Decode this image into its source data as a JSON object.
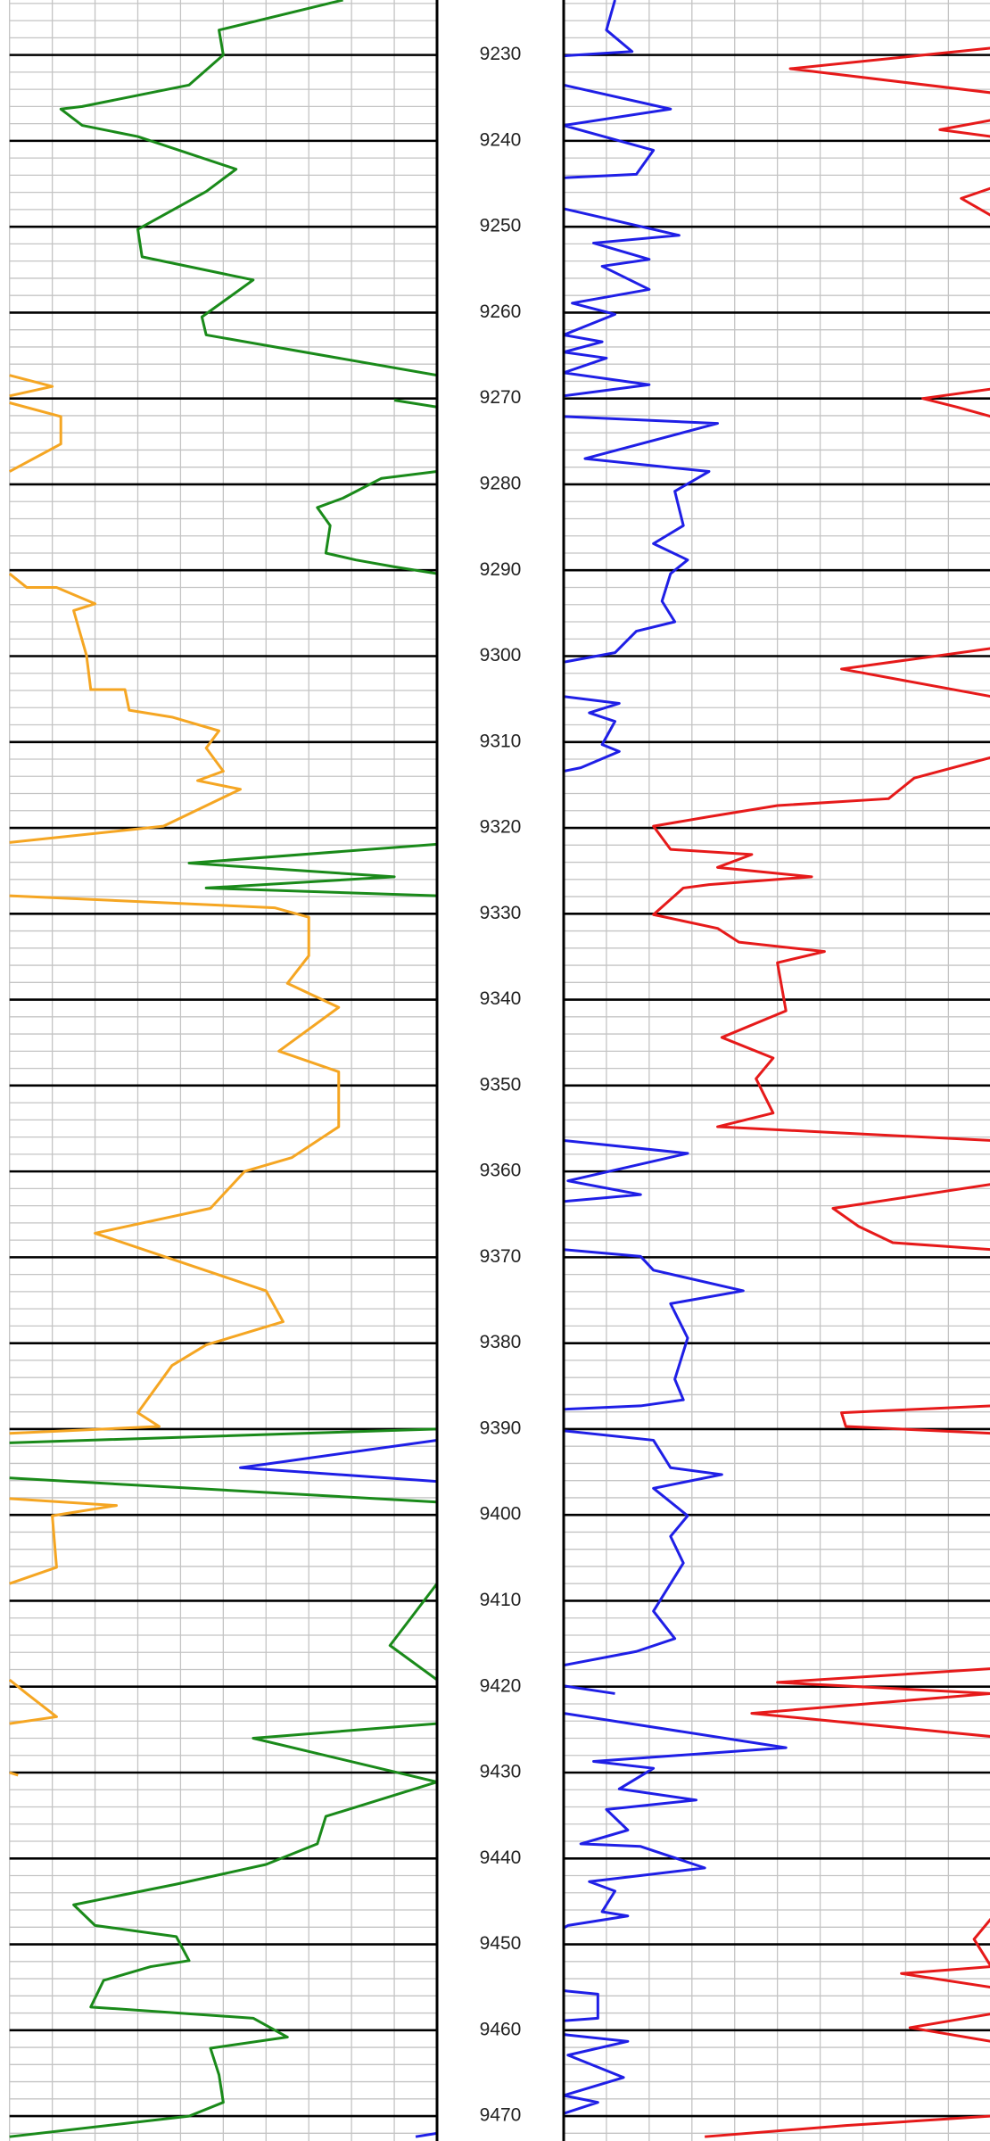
{
  "chart_data": [
    {
      "type": "line",
      "xlim": [
        0,
        10
      ],
      "xticks": [
        0,
        1,
        2,
        3,
        4,
        5,
        6,
        7,
        8,
        9,
        10
      ],
      "ylim": [
        9223.6,
        9472.9
      ],
      "yticks": [
        9230,
        9240,
        9250,
        9260,
        9270,
        9280,
        9290,
        9300,
        9310,
        9320,
        9330,
        9340,
        9350,
        9360,
        9370,
        9380,
        9390,
        9400,
        9410,
        9420,
        9430,
        9440,
        9450,
        9460,
        9470
      ],
      "minor_ystep": 2,
      "grid": true,
      "series": [
        {
          "color": "#1a8a1a",
          "depth": [
            9223.6,
            9227.1,
            9230.0,
            9233.5,
            9236.0,
            9236.3,
            9238.2,
            9239.5,
            9243.3,
            9245.9,
            9250.3,
            9253.5,
            9256.2,
            9260.5,
            9262.6,
            9267.3,
            null,
            9270.2,
            9271.0,
            null,
            9278.5,
            9279.3,
            9281.6,
            9282.7,
            9284.8,
            9288.0,
            9288.8,
            9289.6,
            9290.4,
            null,
            9321.9,
            9324.1,
            9325.7,
            9327.0,
            9327.9,
            null,
            9390.0,
            9391.6,
            null,
            9395.7,
            9398.5,
            null,
            9408.0,
            9415.2,
            9419.2,
            null,
            9424.3,
            9426.0,
            9431.1,
            9435.1,
            9438.3,
            9440.7,
            9443.0,
            9445.4,
            9447.8,
            9449.1,
            9451.9,
            9452.6,
            9454.2,
            9457.3,
            9458.6,
            9460.8,
            9462.1,
            9465.2,
            9468.4,
            9470.0,
            9472.4
          ],
          "values": [
            7.8,
            4.9,
            5.0,
            4.2,
            1.7,
            1.2,
            1.7,
            3.0,
            5.3,
            4.6,
            3.0,
            3.1,
            5.7,
            4.5,
            4.6,
            10,
            null,
            9.0,
            10,
            null,
            10,
            8.7,
            7.8,
            7.2,
            7.5,
            7.4,
            8.1,
            9.0,
            10,
            null,
            10,
            4.2,
            9.0,
            4.6,
            10,
            null,
            10,
            0,
            null,
            0,
            10,
            null,
            10,
            8.9,
            10,
            null,
            10,
            5.7,
            10,
            7.4,
            7.2,
            6.0,
            3.9,
            1.5,
            2.0,
            3.9,
            4.2,
            3.3,
            2.2,
            1.9,
            5.7,
            6.5,
            4.7,
            4.9,
            5.0,
            4.2,
            0
          ]
        },
        {
          "color": "#f5a623",
          "depth": [
            9267.3,
            9268.6,
            9269.7,
            null,
            9270.5,
            9272.1,
            9275.3,
            9278.5,
            null,
            9290.4,
            9292.0,
            9292.0,
            9293.9,
            9294.7,
            9299.9,
            9303.9,
            9303.9,
            9306.3,
            9307.1,
            9308.7,
            9310.7,
            9313.4,
            9314.5,
            9315.5,
            9319.8,
            9321.7,
            null,
            9327.9,
            9329.3,
            9330.4,
            9334.9,
            9338.1,
            9340.9,
            9346.0,
            9348.4,
            9354.8,
            9358.4,
            9360.0,
            9364.3,
            9367.2,
            9373.9,
            9377.5,
            9380.2,
            9382.6,
            9388.1,
            9389.7,
            9390.5,
            null,
            9398.1,
            9398.9,
            9400.1,
            9406.1,
            9408.0,
            null,
            9419.2,
            9420.8,
            9423.5,
            9424.3,
            null,
            9430.0,
            9430.3
          ],
          "values": [
            0,
            1.0,
            0,
            null,
            0,
            1.2,
            1.2,
            0,
            null,
            0,
            0.4,
            1.1,
            2.0,
            1.5,
            1.8,
            1.9,
            2.7,
            2.8,
            3.8,
            4.9,
            4.6,
            5.0,
            4.4,
            5.4,
            3.6,
            0,
            null,
            0,
            6.2,
            7.0,
            7.0,
            6.5,
            7.7,
            6.3,
            7.7,
            7.7,
            6.6,
            5.5,
            4.7,
            2.0,
            6.0,
            6.4,
            4.6,
            3.8,
            3.0,
            3.5,
            0,
            null,
            0,
            2.5,
            1.0,
            1.1,
            0,
            null,
            0,
            0.4,
            1.1,
            0,
            null,
            0,
            0.2
          ]
        },
        {
          "color": "#1f1fe6",
          "depth": [
            9391.3,
            9394.5,
            9396.1,
            null,
            9472.4,
            9472.0
          ],
          "values": [
            10,
            5.4,
            10,
            null,
            9.5,
            10
          ]
        }
      ]
    },
    {
      "type": "line",
      "xlim": [
        0,
        10
      ],
      "xticks": [
        0,
        1,
        2,
        3,
        4,
        5,
        6,
        7,
        8,
        9,
        10
      ],
      "ylim": [
        9223.6,
        9472.9
      ],
      "yticks": [
        9230,
        9240,
        9250,
        9260,
        9270,
        9280,
        9290,
        9300,
        9310,
        9320,
        9330,
        9340,
        9350,
        9360,
        9370,
        9380,
        9390,
        9400,
        9410,
        9420,
        9430,
        9440,
        9450,
        9460,
        9470
      ],
      "minor_ystep": 2,
      "grid": true,
      "series": [
        {
          "color": "#1f1fe6",
          "depth": [
            9223.6,
            9227.1,
            9229.6,
            9230.1,
            null,
            9233.5,
            9236.3,
            9238.2,
            9241.1,
            9243.9,
            9244.3,
            null,
            9247.9,
            9251.0,
            9251.9,
            9253.8,
            9254.6,
            9257.3,
            9258.9,
            9260.2,
            9262.6,
            9263.4,
            9264.6,
            9265.3,
            9267.0,
            9268.4,
            9269.7,
            null,
            9272.1,
            9272.9,
            9277.0,
            9278.5,
            9280.8,
            9284.8,
            9286.9,
            9288.8,
            9290.4,
            9293.6,
            9296.0,
            9297.1,
            9299.6,
            9300.7,
            null,
            9304.7,
            9305.5,
            9306.6,
            9307.6,
            9310.3,
            9311.1,
            9313.0,
            9313.4,
            null,
            9356.4,
            9357.9,
            9361.1,
            9362.7,
            9363.5,
            null,
            9369.1,
            9369.9,
            9371.5,
            9373.9,
            9375.4,
            9379.4,
            9384.2,
            9386.6,
            9387.3,
            9387.7,
            null,
            9390.2,
            9391.3,
            9394.5,
            9395.3,
            9396.9,
            9400.1,
            9402.5,
            9405.6,
            9411.2,
            9414.4,
            9415.9,
            9417.5,
            null,
            9419.9,
            9420.8,
            null,
            9423.1,
            9427.1,
            9428.7,
            9429.5,
            9431.9,
            9433.2,
            9434.3,
            9436.7,
            9438.3,
            9438.6,
            9441.1,
            9442.7,
            9443.8,
            9446.2,
            9446.7,
            9447.8,
            9448.1,
            null,
            9455.4,
            9455.8,
            9458.6,
            9458.9,
            null,
            9460.5,
            9461.3,
            9462.9,
            9465.5,
            9467.6,
            9468.4,
            9469.7
          ],
          "values": [
            1.2,
            1.0,
            1.6,
            0,
            null,
            0,
            2.5,
            0,
            2.1,
            1.7,
            0,
            null,
            0,
            2.7,
            0.7,
            2.0,
            0.9,
            2.0,
            0.2,
            1.2,
            0,
            0.9,
            0,
            1.0,
            0,
            2.0,
            0,
            null,
            0,
            3.6,
            0.5,
            3.4,
            2.6,
            2.8,
            2.1,
            2.9,
            2.5,
            2.3,
            2.6,
            1.7,
            1.2,
            0,
            null,
            0,
            1.3,
            0.6,
            1.2,
            0.9,
            1.3,
            0.4,
            0,
            null,
            0,
            2.9,
            0.1,
            1.8,
            0,
            null,
            0,
            1.8,
            2.1,
            4.2,
            2.5,
            2.9,
            2.6,
            2.8,
            1.8,
            0,
            null,
            0,
            2.1,
            2.5,
            3.7,
            2.1,
            2.9,
            2.5,
            2.8,
            2.1,
            2.6,
            1.7,
            0,
            null,
            0,
            1.2,
            null,
            0,
            5.2,
            0.7,
            2.1,
            1.3,
            3.1,
            1.0,
            1.5,
            0.4,
            1.8,
            3.3,
            0.6,
            1.2,
            0.9,
            1.5,
            0.1,
            0,
            null,
            0,
            0.8,
            0.8,
            0,
            null,
            0,
            1.5,
            0.1,
            1.4,
            0,
            0.8,
            0
          ]
        },
        {
          "color": "#e61a1a",
          "depth": [
            9229.2,
            9231.6,
            9234.4,
            null,
            9237.6,
            9238.7,
            9239.5,
            null,
            9245.5,
            9246.7,
            9248.7,
            null,
            9268.9,
            9270.0,
            9271.0,
            9272.1,
            null,
            9299.1,
            9301.5,
            9304.7,
            null,
            9311.8,
            9314.2,
            9316.6,
            9317.4,
            9318.7,
            9319.8,
            9322.5,
            9323.1,
            9324.6,
            9325.7,
            9326.6,
            9327.0,
            9330.1,
            9331.7,
            9333.3,
            9334.4,
            9335.7,
            9341.3,
            9344.4,
            9346.8,
            9349.2,
            9353.2,
            9354.8,
            9356.4,
            null,
            9361.5,
            9364.3,
            9366.4,
            9368.3,
            9369.1,
            null,
            9387.3,
            9388.1,
            9389.7,
            9390.5,
            null,
            9417.9,
            9419.5,
            9420.8,
            9423.1,
            9425.8,
            null,
            9447.0,
            9449.4,
            9452.6,
            9453.4,
            9455.0,
            null,
            9458.1,
            9459.7,
            9461.3,
            null,
            9470.0,
            9471.1,
            9472.4
          ],
          "values": [
            10,
            5.3,
            10,
            null,
            10,
            8.8,
            10,
            null,
            10,
            9.3,
            10,
            null,
            10,
            8.4,
            9.2,
            10,
            null,
            10,
            6.5,
            10,
            null,
            10,
            8.2,
            7.6,
            5.0,
            3.4,
            2.1,
            2.5,
            4.4,
            3.6,
            5.8,
            3.4,
            2.8,
            2.1,
            3.6,
            4.1,
            6.1,
            5.0,
            5.2,
            3.7,
            4.9,
            4.5,
            4.9,
            3.6,
            10,
            null,
            10,
            6.3,
            6.9,
            7.7,
            10,
            null,
            10,
            6.5,
            6.6,
            10,
            null,
            10,
            5.0,
            10,
            4.4,
            10,
            null,
            10,
            9.6,
            10,
            7.9,
            10,
            null,
            10,
            8.1,
            10,
            null,
            10,
            6.6,
            3.3
          ]
        }
      ]
    }
  ]
}
